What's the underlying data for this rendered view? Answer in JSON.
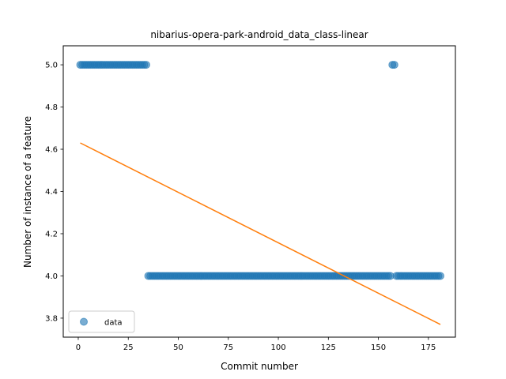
{
  "chart_data": {
    "type": "scatter",
    "title": "nibarius-opera-park-android_data_class-linear",
    "xlabel": "Commit number",
    "ylabel": "Number of instance of a feature",
    "xlim": [
      -7.5,
      188.5
    ],
    "ylim": [
      3.71,
      5.09
    ],
    "xticks": [
      0,
      25,
      50,
      75,
      100,
      125,
      150,
      175
    ],
    "yticks": [
      3.8,
      4.0,
      4.2,
      4.4,
      4.6,
      4.8,
      5.0
    ],
    "ytick_labels": [
      "3.8",
      "4.0",
      "4.2",
      "4.4",
      "4.6",
      "4.8",
      "5.0"
    ],
    "legend": {
      "position": "lower-left",
      "entries": [
        "data"
      ]
    },
    "series": [
      {
        "name": "data",
        "kind": "points",
        "color": "#1f77b4",
        "segments": [
          {
            "x_from": 1,
            "x_to": 34,
            "y": 5.0
          },
          {
            "x_from": 35,
            "x_to": 156,
            "y": 4.0
          },
          {
            "x_from": 157,
            "x_to": 158,
            "y": 5.0
          },
          {
            "x_from": 159,
            "x_to": 181,
            "y": 4.0
          }
        ]
      },
      {
        "kind": "line",
        "color": "#ff7f0e",
        "points": [
          [
            1,
            4.63
          ],
          [
            181,
            3.77
          ]
        ]
      }
    ]
  }
}
